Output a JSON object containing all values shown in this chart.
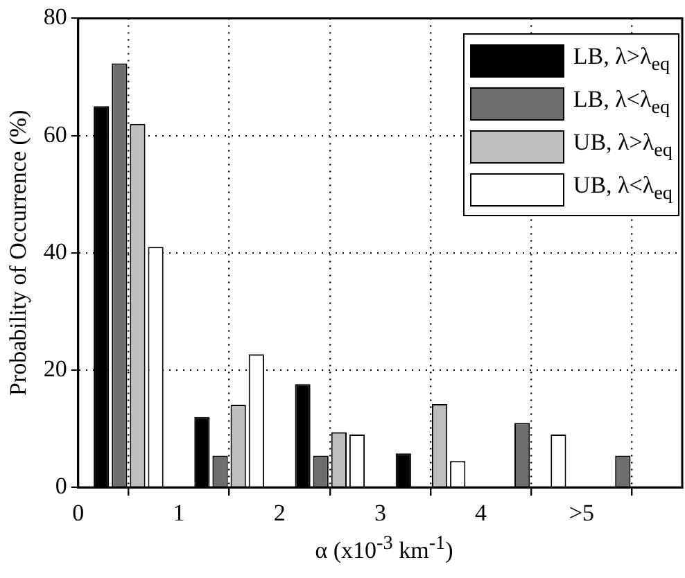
{
  "chart_data": {
    "type": "bar",
    "ylabel": "Probability of Occurrence (%)",
    "xlabel": "α (x10$^{-3}$ km$^{-1}$)",
    "x": [
      0.5,
      1.5,
      2.5,
      3.5,
      4.5,
      5.5
    ],
    "series": [
      {
        "name": "LB, λ>λ$_{eq}$",
        "color": "#000000",
        "values": [
          65,
          12,
          17.6,
          5.8,
          0,
          0
        ]
      },
      {
        "name": "LB, λ<λ$_{eq}$",
        "color": "#6e6e6e",
        "values": [
          72.3,
          5.4,
          5.4,
          0,
          11,
          5.4
        ]
      },
      {
        "name": "UB, λ>λ$_{eq}$",
        "color": "#bebebe",
        "values": [
          62,
          14.1,
          9.4,
          14.2,
          0,
          0
        ]
      },
      {
        "name": "UB, λ<λ$_{eq}$",
        "color": "#ffffff",
        "values": [
          41,
          22.7,
          9,
          4.5,
          9,
          0
        ]
      }
    ],
    "xlim": [
      0,
      6
    ],
    "xticks": [
      {
        "value": 0,
        "label": "0"
      },
      {
        "value": 0.5,
        "label": null
      },
      {
        "value": 1,
        "label": "1"
      },
      {
        "value": 1.5,
        "label": null
      },
      {
        "value": 2,
        "label": "2"
      },
      {
        "value": 2.5,
        "label": null
      },
      {
        "value": 3,
        "label": "3"
      },
      {
        "value": 3.5,
        "label": null
      },
      {
        "value": 4,
        "label": "4"
      },
      {
        "value": 4.5,
        "label": null
      },
      {
        "value": 5,
        "label": ">5"
      },
      {
        "value": 5.5,
        "label": null
      }
    ],
    "ylim": [
      0,
      80
    ],
    "yticks": [
      0,
      20,
      40,
      60,
      80
    ],
    "grid": true,
    "legend": "top right"
  }
}
